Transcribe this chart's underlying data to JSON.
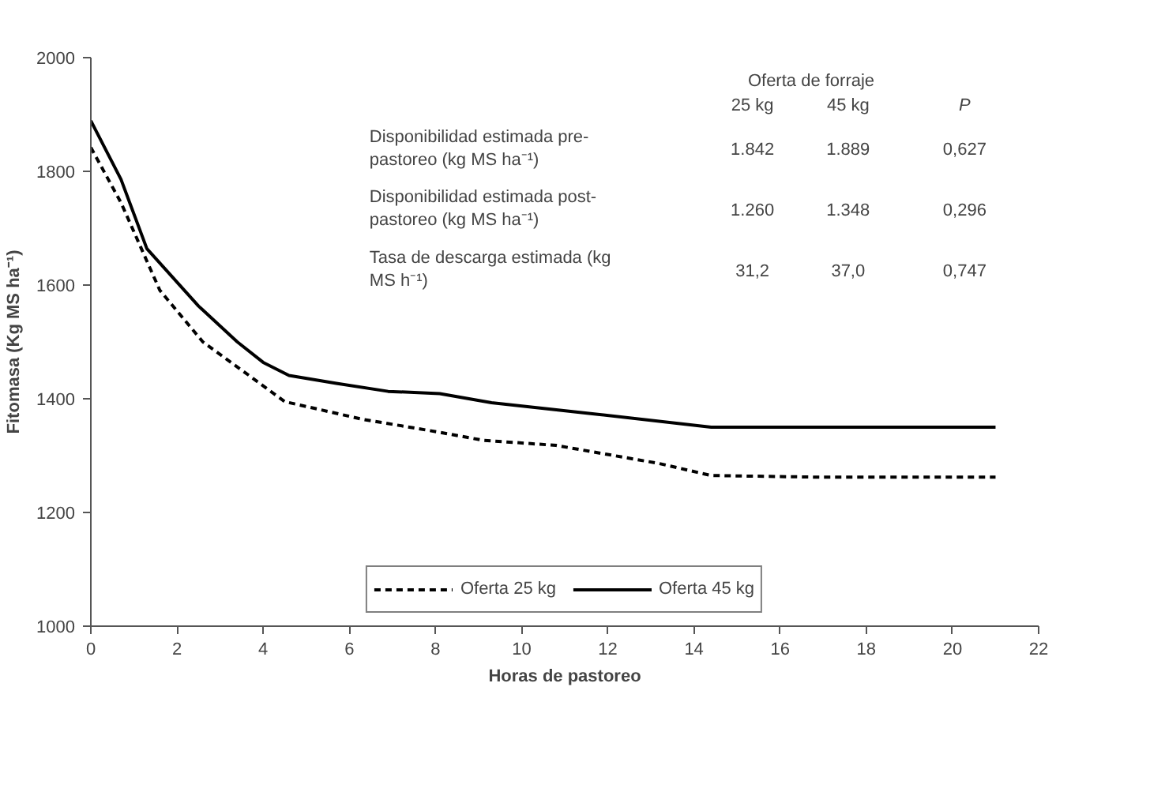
{
  "chart_data": {
    "type": "line",
    "xlabel": "Horas de pastoreo",
    "ylabel": "Fitomasa (Kg MS ha⁻¹)",
    "xlim": [
      0,
      22
    ],
    "xticks": [
      0,
      2,
      4,
      6,
      8,
      10,
      12,
      14,
      16,
      18,
      20,
      22
    ],
    "ylim": [
      1000,
      2000
    ],
    "yticks": [
      1000,
      1200,
      1400,
      1600,
      1800,
      2000
    ],
    "grid": false,
    "legend": "bottom",
    "series": [
      {
        "name": "Oferta 25 kg",
        "color": "#000000",
        "line_style": "dashed",
        "x": [
          0,
          0.7,
          1.6,
          2.6,
          3.6,
          4.5,
          6.3,
          8.1,
          9.1,
          10.8,
          13.2,
          14.4,
          17,
          21
        ],
        "values": [
          1842,
          1745,
          1591,
          1500,
          1445,
          1395,
          1364,
          1341,
          1327,
          1318,
          1286,
          1265,
          1262,
          1262
        ]
      },
      {
        "name": "Oferta 45 kg",
        "color": "#000000",
        "line_style": "solid",
        "x": [
          0,
          0.7,
          1.3,
          2.5,
          3.4,
          4.0,
          4.6,
          5.7,
          6.9,
          8.1,
          9.3,
          11.6,
          14.4,
          21
        ],
        "values": [
          1889,
          1786,
          1664,
          1563,
          1500,
          1464,
          1441,
          1427,
          1413,
          1409,
          1393,
          1374,
          1350,
          1350
        ]
      }
    ],
    "annotations": [
      "Oferta de forraje",
      "25 kg",
      "45 kg",
      "P",
      "Disponibilidad estimada pre-\npastoreo (kg MS ha⁻¹)",
      "1.842",
      "1.889",
      "0,627",
      "Disponibilidad estimada post-\npastoreo (kg MS ha⁻¹)",
      "1.260",
      "1.348",
      "0,296",
      "Tasa de descarga estimada (kg\nMS h⁻¹)",
      "31,2",
      "37,0",
      "0,747"
    ]
  }
}
